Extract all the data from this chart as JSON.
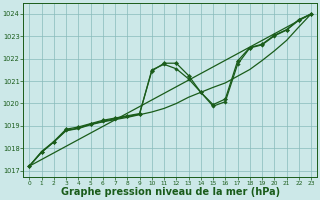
{
  "background_color": "#cce8e8",
  "grid_color": "#88bbbb",
  "line_color": "#1a5c1a",
  "marker_color": "#1a5c1a",
  "xlabel": "Graphe pression niveau de la mer (hPa)",
  "xlabel_fontsize": 7,
  "ylabel_ticks": [
    1017,
    1018,
    1019,
    1020,
    1021,
    1022,
    1023,
    1024
  ],
  "xlim": [
    -0.5,
    23.5
  ],
  "ylim": [
    1016.7,
    1024.5
  ],
  "xticks": [
    0,
    1,
    2,
    3,
    4,
    5,
    6,
    7,
    8,
    9,
    10,
    11,
    12,
    13,
    14,
    15,
    16,
    17,
    18,
    19,
    20,
    21,
    22,
    23
  ],
  "series_trend": [
    [
      0,
      1017.2
    ],
    [
      23,
      1024.0
    ]
  ],
  "series_main": [
    [
      0,
      1017.2
    ],
    [
      1,
      1017.85
    ],
    [
      2,
      1018.3
    ],
    [
      3,
      1018.85
    ],
    [
      4,
      1018.95
    ],
    [
      5,
      1019.1
    ],
    [
      6,
      1019.25
    ],
    [
      7,
      1019.35
    ],
    [
      8,
      1019.45
    ],
    [
      9,
      1019.55
    ],
    [
      10,
      1021.45
    ],
    [
      11,
      1021.8
    ],
    [
      12,
      1021.8
    ],
    [
      13,
      1021.25
    ],
    [
      14,
      1020.5
    ],
    [
      15,
      1019.95
    ],
    [
      16,
      1020.2
    ],
    [
      17,
      1021.9
    ],
    [
      18,
      1022.5
    ],
    [
      19,
      1022.65
    ],
    [
      20,
      1023.05
    ],
    [
      21,
      1023.3
    ],
    [
      22,
      1023.75
    ],
    [
      23,
      1024.0
    ]
  ],
  "series_smooth": [
    [
      0,
      1017.2
    ],
    [
      1,
      1017.82
    ],
    [
      2,
      1018.28
    ],
    [
      3,
      1018.78
    ],
    [
      4,
      1018.88
    ],
    [
      5,
      1019.05
    ],
    [
      6,
      1019.18
    ],
    [
      7,
      1019.28
    ],
    [
      8,
      1019.38
    ],
    [
      9,
      1019.5
    ],
    [
      10,
      1019.62
    ],
    [
      11,
      1019.78
    ],
    [
      12,
      1020.0
    ],
    [
      13,
      1020.28
    ],
    [
      14,
      1020.5
    ],
    [
      15,
      1020.72
    ],
    [
      16,
      1020.92
    ],
    [
      17,
      1021.22
    ],
    [
      18,
      1021.52
    ],
    [
      19,
      1021.92
    ],
    [
      20,
      1022.35
    ],
    [
      21,
      1022.82
    ],
    [
      22,
      1023.42
    ],
    [
      23,
      1024.0
    ]
  ],
  "series_extra": [
    [
      0,
      1017.2
    ],
    [
      1,
      1017.82
    ],
    [
      2,
      1018.28
    ],
    [
      3,
      1018.8
    ],
    [
      4,
      1018.9
    ],
    [
      5,
      1019.08
    ],
    [
      6,
      1019.2
    ],
    [
      7,
      1019.32
    ],
    [
      8,
      1019.42
    ],
    [
      9,
      1019.52
    ],
    [
      10,
      1021.5
    ],
    [
      11,
      1021.75
    ],
    [
      12,
      1021.55
    ],
    [
      13,
      1021.1
    ],
    [
      14,
      1020.5
    ],
    [
      15,
      1019.88
    ],
    [
      16,
      1020.08
    ],
    [
      17,
      1021.75
    ],
    [
      18,
      1022.48
    ],
    [
      19,
      1022.62
    ],
    [
      20,
      1023.02
    ],
    [
      21,
      1023.28
    ],
    [
      22,
      1023.72
    ],
    [
      23,
      1024.0
    ]
  ]
}
